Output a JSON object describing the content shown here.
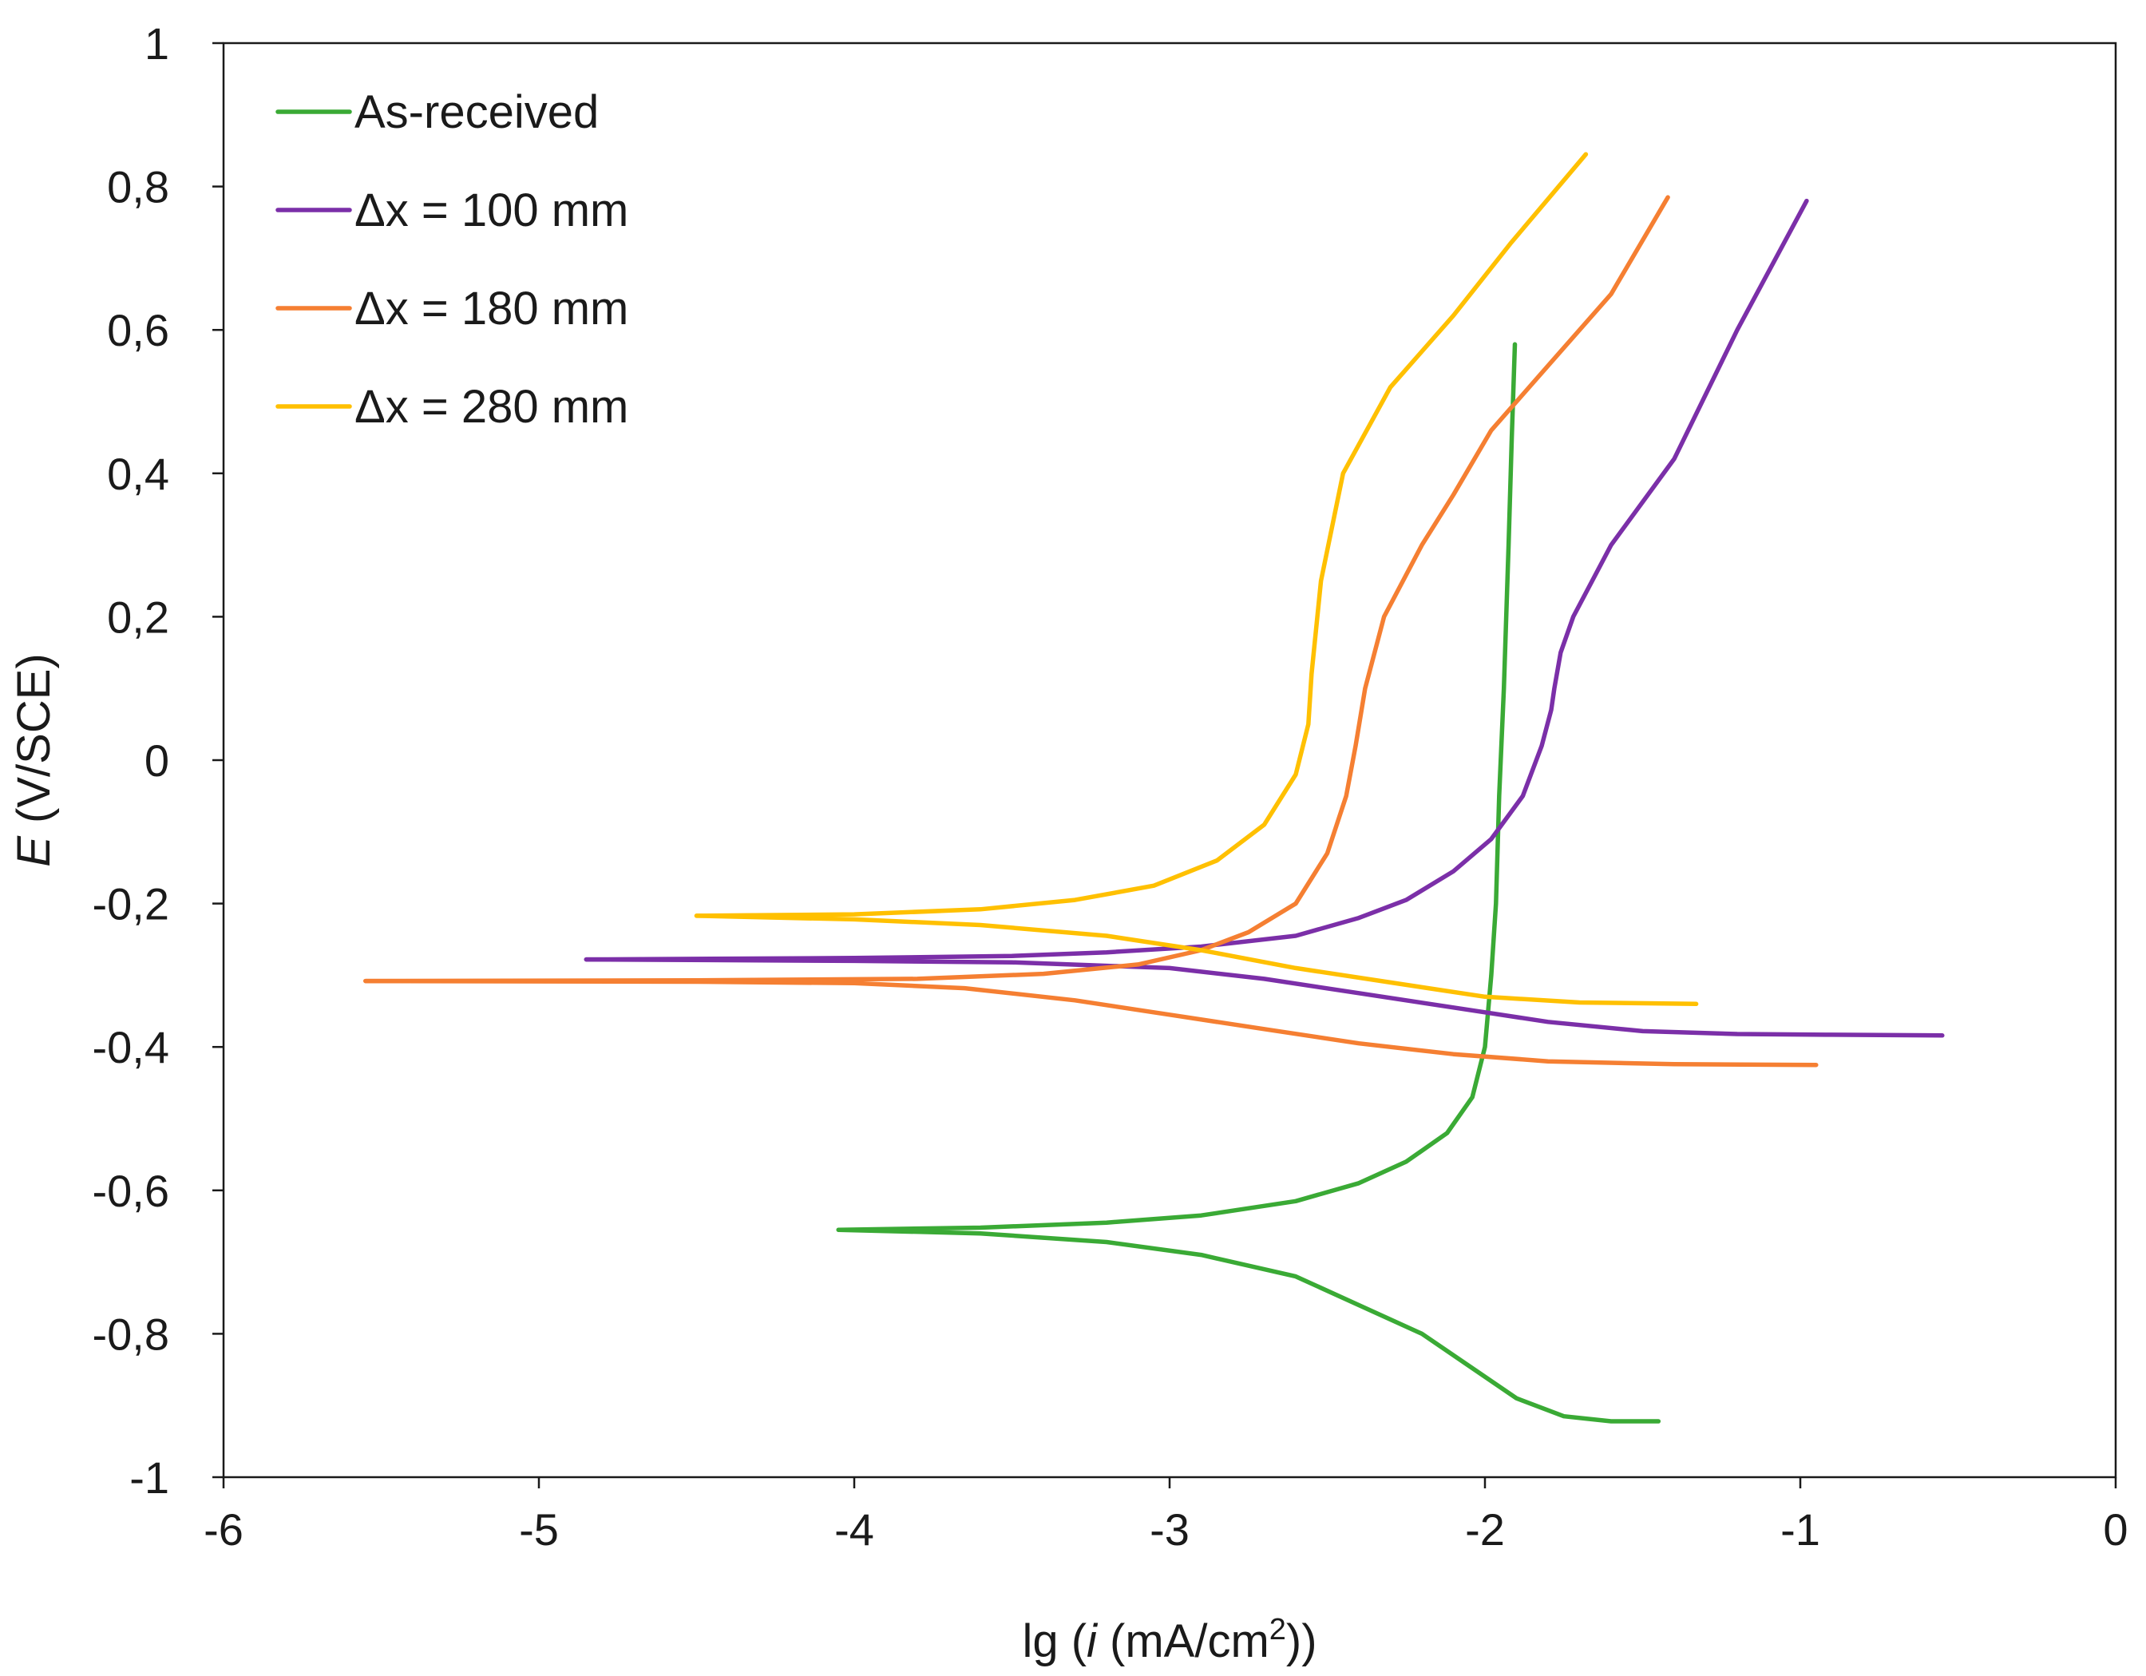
{
  "chart_data": {
    "type": "line",
    "title": "",
    "xlabel_prefix": "lg (",
    "xlabel_var": "i",
    "xlabel_units": " (mA/cm",
    "xlabel_sup": "2",
    "xlabel_suffix": "))",
    "ylabel_var": "E",
    "ylabel_units": " (V/SCE)",
    "xlim": [
      -6,
      0
    ],
    "ylim": [
      -1,
      1
    ],
    "x_ticks": [
      -6,
      -5,
      -4,
      -3,
      -2,
      -1,
      0
    ],
    "x_tick_labels": [
      "-6",
      "-5",
      "-4",
      "-3",
      "-2",
      "-1",
      "0"
    ],
    "y_ticks": [
      1,
      0.8,
      0.6,
      0.4,
      0.2,
      0,
      -0.2,
      -0.4,
      -0.6,
      -0.8,
      -1
    ],
    "y_tick_labels": [
      "1",
      "0,8",
      "0,6",
      "0,4",
      "0,2",
      "0",
      "-0,2",
      "-0,4",
      "-0,6",
      "-0,8",
      "-1"
    ],
    "grid": false,
    "legend_position": "top-left",
    "series": [
      {
        "name": "As-received",
        "color": "#3aaa35",
        "cathodic": [
          [
            -4.05,
            -0.655
          ],
          [
            -3.6,
            -0.66
          ],
          [
            -3.2,
            -0.672
          ],
          [
            -2.9,
            -0.69
          ],
          [
            -2.6,
            -0.72
          ],
          [
            -2.4,
            -0.76
          ],
          [
            -2.2,
            -0.8
          ],
          [
            -2.05,
            -0.845
          ],
          [
            -1.9,
            -0.89
          ],
          [
            -1.75,
            -0.915
          ],
          [
            -1.6,
            -0.922
          ],
          [
            -1.45,
            -0.922
          ]
        ],
        "anodic": [
          [
            -4.05,
            -0.655
          ],
          [
            -3.6,
            -0.652
          ],
          [
            -3.2,
            -0.645
          ],
          [
            -2.9,
            -0.635
          ],
          [
            -2.6,
            -0.615
          ],
          [
            -2.4,
            -0.59
          ],
          [
            -2.25,
            -0.56
          ],
          [
            -2.12,
            -0.52
          ],
          [
            -2.04,
            -0.47
          ],
          [
            -2.0,
            -0.4
          ],
          [
            -1.98,
            -0.3
          ],
          [
            -1.965,
            -0.2
          ],
          [
            -1.955,
            -0.05
          ],
          [
            -1.94,
            0.1
          ],
          [
            -1.925,
            0.3
          ],
          [
            -1.915,
            0.45
          ],
          [
            -1.905,
            0.58
          ]
        ]
      },
      {
        "name": "Δx = 100 mm",
        "color": "#7b2fa8",
        "cathodic": [
          [
            -4.85,
            -0.278
          ],
          [
            -4.0,
            -0.28
          ],
          [
            -3.5,
            -0.282
          ],
          [
            -3.0,
            -0.29
          ],
          [
            -2.7,
            -0.305
          ],
          [
            -2.4,
            -0.325
          ],
          [
            -2.1,
            -0.345
          ],
          [
            -1.8,
            -0.365
          ],
          [
            -1.5,
            -0.378
          ],
          [
            -1.2,
            -0.382
          ],
          [
            -0.9,
            -0.383
          ],
          [
            -0.55,
            -0.384
          ]
        ],
        "anodic": [
          [
            -4.85,
            -0.278
          ],
          [
            -4.0,
            -0.276
          ],
          [
            -3.5,
            -0.273
          ],
          [
            -3.2,
            -0.268
          ],
          [
            -2.9,
            -0.26
          ],
          [
            -2.6,
            -0.245
          ],
          [
            -2.4,
            -0.22
          ],
          [
            -2.25,
            -0.195
          ],
          [
            -2.1,
            -0.155
          ],
          [
            -1.98,
            -0.11
          ],
          [
            -1.88,
            -0.05
          ],
          [
            -1.82,
            0.02
          ],
          [
            -1.79,
            0.07
          ],
          [
            -1.78,
            0.1
          ],
          [
            -1.76,
            0.15
          ],
          [
            -1.72,
            0.2
          ],
          [
            -1.6,
            0.3
          ],
          [
            -1.4,
            0.42
          ],
          [
            -1.2,
            0.6
          ],
          [
            -0.98,
            0.78
          ]
        ]
      },
      {
        "name": "Δx = 180 mm",
        "color": "#f57f32",
        "cathodic": [
          [
            -5.55,
            -0.308
          ],
          [
            -4.5,
            -0.309
          ],
          [
            -4.0,
            -0.311
          ],
          [
            -3.65,
            -0.318
          ],
          [
            -3.3,
            -0.335
          ],
          [
            -3.0,
            -0.355
          ],
          [
            -2.7,
            -0.375
          ],
          [
            -2.4,
            -0.395
          ],
          [
            -2.1,
            -0.41
          ],
          [
            -1.8,
            -0.42
          ],
          [
            -1.4,
            -0.424
          ],
          [
            -0.95,
            -0.425
          ]
        ],
        "anodic": [
          [
            -5.55,
            -0.308
          ],
          [
            -4.5,
            -0.307
          ],
          [
            -3.8,
            -0.305
          ],
          [
            -3.4,
            -0.298
          ],
          [
            -3.1,
            -0.285
          ],
          [
            -2.9,
            -0.265
          ],
          [
            -2.75,
            -0.24
          ],
          [
            -2.6,
            -0.2
          ],
          [
            -2.5,
            -0.13
          ],
          [
            -2.44,
            -0.05
          ],
          [
            -2.41,
            0.02
          ],
          [
            -2.38,
            0.1
          ],
          [
            -2.32,
            0.2
          ],
          [
            -2.2,
            0.3
          ],
          [
            -2.1,
            0.37
          ],
          [
            -1.98,
            0.46
          ],
          [
            -1.8,
            0.55
          ],
          [
            -1.6,
            0.65
          ],
          [
            -1.42,
            0.785
          ]
        ]
      },
      {
        "name": "Δx = 280 mm",
        "color": "#ffc000",
        "cathodic": [
          [
            -4.5,
            -0.217
          ],
          [
            -4.0,
            -0.222
          ],
          [
            -3.6,
            -0.23
          ],
          [
            -3.2,
            -0.245
          ],
          [
            -2.9,
            -0.265
          ],
          [
            -2.6,
            -0.29
          ],
          [
            -2.3,
            -0.31
          ],
          [
            -2.0,
            -0.33
          ],
          [
            -1.7,
            -0.338
          ],
          [
            -1.33,
            -0.34
          ]
        ],
        "anodic": [
          [
            -4.5,
            -0.217
          ],
          [
            -4.0,
            -0.215
          ],
          [
            -3.6,
            -0.208
          ],
          [
            -3.3,
            -0.195
          ],
          [
            -3.05,
            -0.175
          ],
          [
            -2.85,
            -0.14
          ],
          [
            -2.7,
            -0.09
          ],
          [
            -2.6,
            -0.02
          ],
          [
            -2.56,
            0.05
          ],
          [
            -2.55,
            0.12
          ],
          [
            -2.52,
            0.25
          ],
          [
            -2.45,
            0.4
          ],
          [
            -2.3,
            0.52
          ],
          [
            -2.1,
            0.62
          ],
          [
            -1.92,
            0.72
          ],
          [
            -1.68,
            0.845
          ]
        ]
      }
    ]
  }
}
